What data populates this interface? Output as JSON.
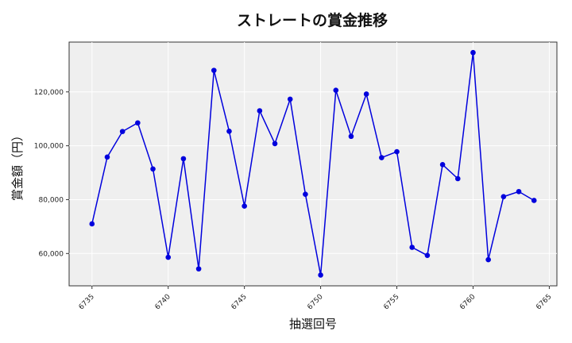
{
  "chart_data": {
    "type": "line",
    "title": "ストレートの賞金推移",
    "xlabel": "抽選回号",
    "ylabel": "賞金額（円）",
    "xlim": [
      6733.5,
      6765.5
    ],
    "ylim": [
      48000,
      138500
    ],
    "x_ticks": [
      6735,
      6740,
      6745,
      6750,
      6755,
      6760,
      6765
    ],
    "y_ticks": [
      60000,
      80000,
      100000,
      120000
    ],
    "y_tick_labels": [
      "60,000",
      "80,000",
      "100,000",
      "120,000"
    ],
    "grid": true,
    "line_color": "#0000dd",
    "background_color": "#efefef",
    "x": [
      6735,
      6736,
      6737,
      6738,
      6739,
      6740,
      6741,
      6742,
      6743,
      6744,
      6745,
      6746,
      6747,
      6748,
      6749,
      6750,
      6751,
      6752,
      6753,
      6754,
      6755,
      6756,
      6757,
      6758,
      6759,
      6760,
      6761,
      6762,
      6763,
      6764
    ],
    "values": [
      71000,
      95800,
      105300,
      108500,
      91400,
      58600,
      95200,
      54300,
      128000,
      105400,
      77600,
      113000,
      100800,
      117300,
      82000,
      52000,
      120600,
      103500,
      119200,
      95600,
      97800,
      62300,
      59300,
      93000,
      87800,
      134600,
      57700,
      81100,
      83000,
      79700
    ]
  }
}
